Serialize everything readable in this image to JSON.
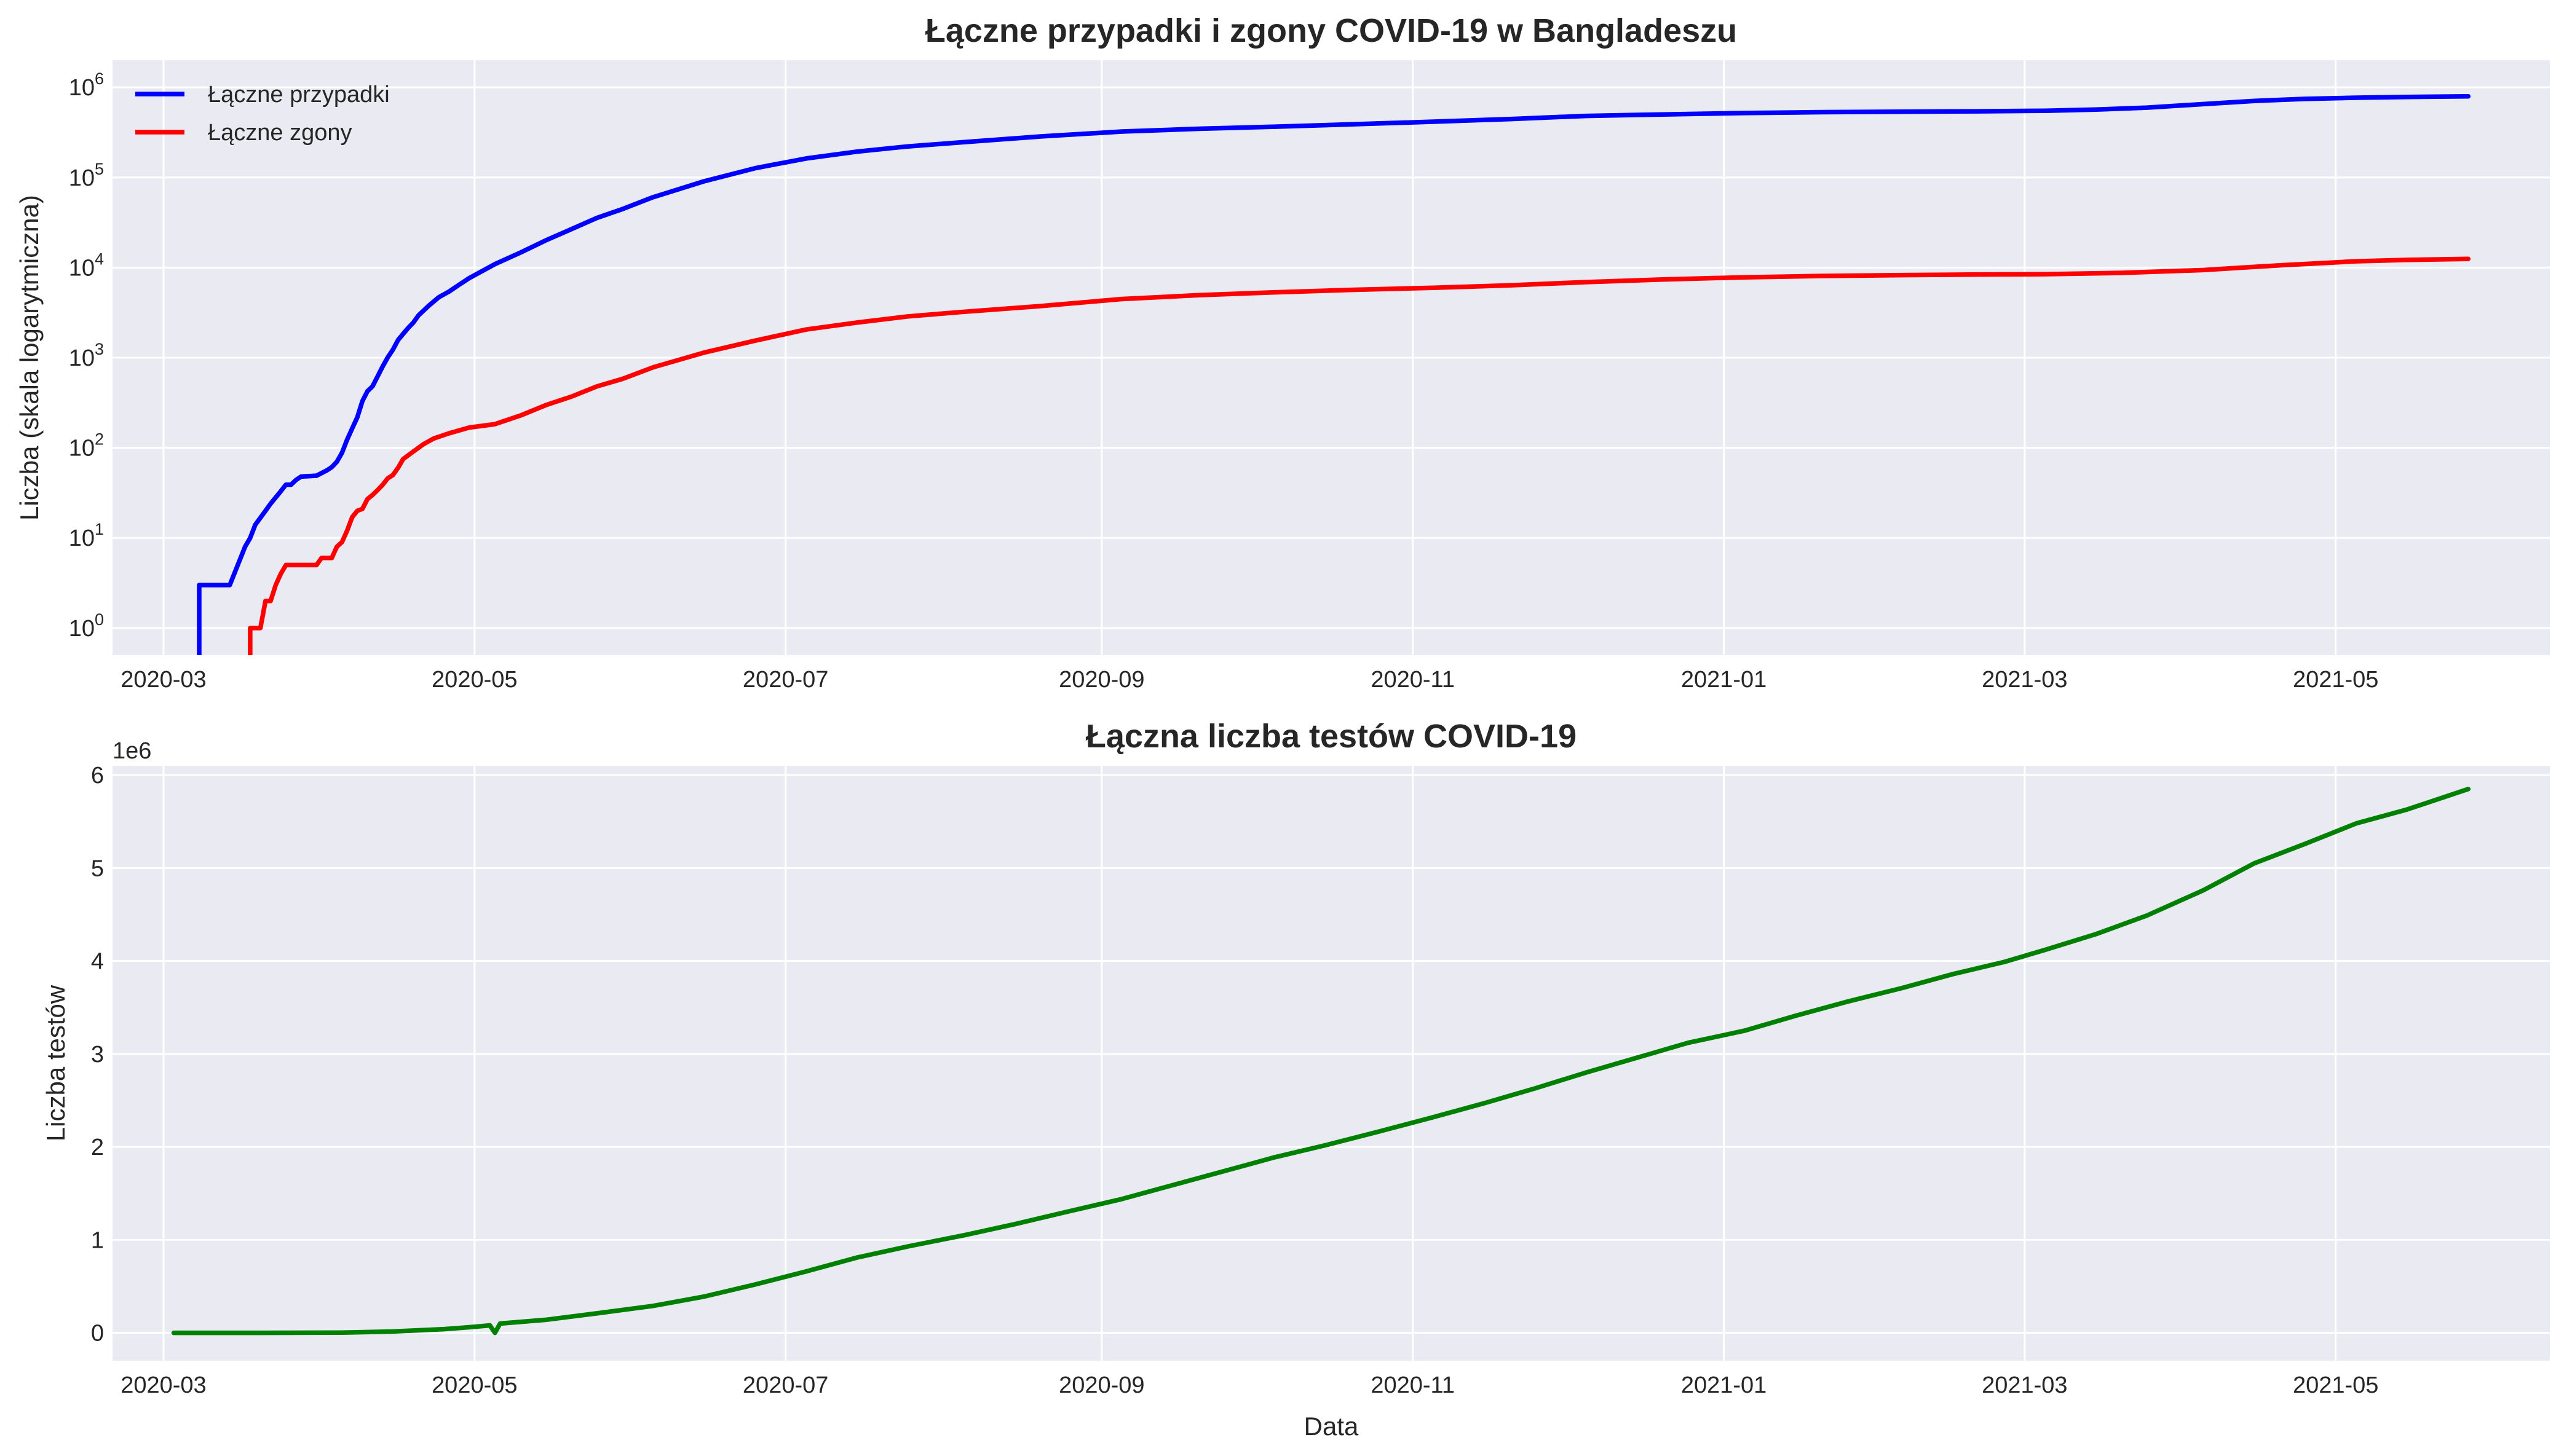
{
  "chart_data": [
    {
      "type": "line",
      "title": "Łączne przypadki i zgony COVID-19 w Bangladeszu",
      "xlabel": "",
      "ylabel": "Liczba (skala logarytmiczna)",
      "yscale": "log",
      "ylim": [
        0.5,
        2000000
      ],
      "xlim": [
        "2020-02-20",
        "2021-06-12"
      ],
      "grid": true,
      "legend": "top-left",
      "x_ticks": [
        "2020-03",
        "2020-05",
        "2020-07",
        "2020-09",
        "2020-11",
        "2021-01",
        "2021-03",
        "2021-05"
      ],
      "y_ticks": [
        {
          "value": 1,
          "base": "10",
          "exp": "0"
        },
        {
          "value": 10,
          "base": "10",
          "exp": "1"
        },
        {
          "value": 100,
          "base": "10",
          "exp": "2"
        },
        {
          "value": 1000,
          "base": "10",
          "exp": "3"
        },
        {
          "value": 10000,
          "base": "10",
          "exp": "4"
        },
        {
          "value": 100000,
          "base": "10",
          "exp": "5"
        },
        {
          "value": 1000000,
          "base": "10",
          "exp": "6"
        }
      ],
      "series": [
        {
          "name": "Łączne przypadki",
          "color": "#0000ff",
          "points": [
            [
              "2020-03-08",
              3
            ],
            [
              "2020-03-14",
              3
            ],
            [
              "2020-03-17",
              8
            ],
            [
              "2020-03-18",
              10
            ],
            [
              "2020-03-19",
              14
            ],
            [
              "2020-03-21",
              20
            ],
            [
              "2020-03-22",
              24
            ],
            [
              "2020-03-24",
              33
            ],
            [
              "2020-03-25",
              39
            ],
            [
              "2020-03-26",
              39
            ],
            [
              "2020-03-27",
              44
            ],
            [
              "2020-03-28",
              48
            ],
            [
              "2020-03-31",
              49
            ],
            [
              "2020-04-02",
              56
            ],
            [
              "2020-04-03",
              61
            ],
            [
              "2020-04-04",
              70
            ],
            [
              "2020-04-05",
              88
            ],
            [
              "2020-04-06",
              123
            ],
            [
              "2020-04-07",
              164
            ],
            [
              "2020-04-08",
              218
            ],
            [
              "2020-04-09",
              330
            ],
            [
              "2020-04-10",
              424
            ],
            [
              "2020-04-11",
              482
            ],
            [
              "2020-04-12",
              621
            ],
            [
              "2020-04-13",
              803
            ],
            [
              "2020-04-14",
              1012
            ],
            [
              "2020-04-15",
              1231
            ],
            [
              "2020-04-16",
              1572
            ],
            [
              "2020-04-17",
              1838
            ],
            [
              "2020-04-18",
              2144
            ],
            [
              "2020-04-19",
              2456
            ],
            [
              "2020-04-20",
              2948
            ],
            [
              "2020-04-22",
              3772
            ],
            [
              "2020-04-24",
              4689
            ],
            [
              "2020-04-26",
              5416
            ],
            [
              "2020-04-28",
              6462
            ],
            [
              "2020-04-30",
              7667
            ],
            [
              "2020-05-05",
              10929
            ],
            [
              "2020-05-10",
              14657
            ],
            [
              "2020-05-15",
              20065
            ],
            [
              "2020-05-20",
              26738
            ],
            [
              "2020-05-25",
              35585
            ],
            [
              "2020-05-30",
              44608
            ],
            [
              "2020-06-05",
              60391
            ],
            [
              "2020-06-15",
              90619
            ],
            [
              "2020-06-25",
              126606
            ],
            [
              "2020-07-05",
              162417
            ],
            [
              "2020-07-15",
              193590
            ],
            [
              "2020-07-25",
              221178
            ],
            [
              "2020-08-05",
              246674
            ],
            [
              "2020-08-20",
              285091
            ],
            [
              "2020-09-05",
              323565
            ],
            [
              "2020-09-20",
              347372
            ],
            [
              "2020-10-05",
              366383
            ],
            [
              "2020-10-20",
              388569
            ],
            [
              "2020-11-05",
              416006
            ],
            [
              "2020-11-20",
              445281
            ],
            [
              "2020-12-05",
              481945
            ],
            [
              "2020-12-20",
              500713
            ],
            [
              "2021-01-05",
              518894
            ],
            [
              "2021-01-20",
              530271
            ],
            [
              "2021-02-05",
              537451
            ],
            [
              "2021-02-20",
              542268
            ],
            [
              "2021-03-05",
              550330
            ],
            [
              "2021-03-15",
              566398
            ],
            [
              "2021-03-25",
              595714
            ],
            [
              "2021-04-05",
              651652
            ],
            [
              "2021-04-15",
              707362
            ],
            [
              "2021-04-25",
              745322
            ],
            [
              "2021-05-05",
              767338
            ],
            [
              "2021-05-15",
              781917
            ],
            [
              "2021-05-27",
              796000
            ]
          ]
        },
        {
          "name": "Łączne zgony",
          "color": "#ff0000",
          "points": [
            [
              "2020-03-18",
              1
            ],
            [
              "2020-03-20",
              1
            ],
            [
              "2020-03-21",
              2
            ],
            [
              "2020-03-22",
              2
            ],
            [
              "2020-03-23",
              3
            ],
            [
              "2020-03-24",
              4
            ],
            [
              "2020-03-25",
              5
            ],
            [
              "2020-03-31",
              5
            ],
            [
              "2020-04-01",
              6
            ],
            [
              "2020-04-03",
              6
            ],
            [
              "2020-04-04",
              8
            ],
            [
              "2020-04-05",
              9
            ],
            [
              "2020-04-06",
              12
            ],
            [
              "2020-04-07",
              17
            ],
            [
              "2020-04-08",
              20
            ],
            [
              "2020-04-09",
              21
            ],
            [
              "2020-04-10",
              27
            ],
            [
              "2020-04-11",
              30
            ],
            [
              "2020-04-12",
              34
            ],
            [
              "2020-04-13",
              39
            ],
            [
              "2020-04-14",
              46
            ],
            [
              "2020-04-15",
              50
            ],
            [
              "2020-04-16",
              60
            ],
            [
              "2020-04-17",
              75
            ],
            [
              "2020-04-19",
              91
            ],
            [
              "2020-04-21",
              110
            ],
            [
              "2020-04-23",
              127
            ],
            [
              "2020-04-26",
              145
            ],
            [
              "2020-04-30",
              168
            ],
            [
              "2020-05-05",
              183
            ],
            [
              "2020-05-10",
              228
            ],
            [
              "2020-05-15",
              298
            ],
            [
              "2020-05-20",
              370
            ],
            [
              "2020-05-25",
              480
            ],
            [
              "2020-05-30",
              582
            ],
            [
              "2020-06-05",
              781
            ],
            [
              "2020-06-15",
              1139
            ],
            [
              "2020-06-25",
              1545
            ],
            [
              "2020-07-05",
              2052
            ],
            [
              "2020-07-15",
              2457
            ],
            [
              "2020-07-25",
              2874
            ],
            [
              "2020-08-05",
              3234
            ],
            [
              "2020-08-20",
              3740
            ],
            [
              "2020-09-05",
              4479
            ],
            [
              "2020-09-20",
              4939
            ],
            [
              "2020-10-05",
              5318
            ],
            [
              "2020-10-20",
              5660
            ],
            [
              "2020-11-05",
              5966
            ],
            [
              "2020-11-20",
              6350
            ],
            [
              "2020-12-05",
              6906
            ],
            [
              "2020-12-20",
              7380
            ],
            [
              "2021-01-05",
              7803
            ],
            [
              "2021-01-20",
              8072
            ],
            [
              "2021-02-05",
              8248
            ],
            [
              "2021-02-20",
              8384
            ],
            [
              "2021-03-05",
              8451
            ],
            [
              "2021-03-20",
              8738
            ],
            [
              "2021-04-05",
              9384
            ],
            [
              "2021-04-20",
              10588
            ],
            [
              "2021-05-05",
              11755
            ],
            [
              "2021-05-15",
              12162
            ],
            [
              "2021-05-27",
              12500
            ]
          ]
        }
      ]
    },
    {
      "type": "line",
      "title": "Łączna liczba testów COVID-19",
      "xlabel": "Data",
      "ylabel": "Liczba testów",
      "y_offset_label": "1e6",
      "ylim": [
        -300000,
        6100000
      ],
      "xlim": [
        "2020-02-20",
        "2021-06-12"
      ],
      "grid": true,
      "x_ticks": [
        "2020-03",
        "2020-05",
        "2020-07",
        "2020-09",
        "2020-11",
        "2021-01",
        "2021-03",
        "2021-05"
      ],
      "y_ticks": [
        {
          "value": 0,
          "label": "0"
        },
        {
          "value": 1000000,
          "label": "1"
        },
        {
          "value": 2000000,
          "label": "2"
        },
        {
          "value": 3000000,
          "label": "3"
        },
        {
          "value": 4000000,
          "label": "4"
        },
        {
          "value": 5000000,
          "label": "5"
        },
        {
          "value": 6000000,
          "label": "6"
        }
      ],
      "series": [
        {
          "color": "#008000",
          "points": [
            [
              "2020-03-03",
              0
            ],
            [
              "2020-03-20",
              400
            ],
            [
              "2020-04-05",
              3000
            ],
            [
              "2020-04-15",
              15000
            ],
            [
              "2020-04-25",
              40000
            ],
            [
              "2020-05-01",
              65000
            ],
            [
              "2020-05-04",
              80000
            ],
            [
              "2020-05-05",
              0
            ],
            [
              "2020-05-06",
              100000
            ],
            [
              "2020-05-15",
              140000
            ],
            [
              "2020-05-25",
              210000
            ],
            [
              "2020-06-05",
              290000
            ],
            [
              "2020-06-15",
              390000
            ],
            [
              "2020-06-25",
              520000
            ],
            [
              "2020-07-05",
              660000
            ],
            [
              "2020-07-15",
              810000
            ],
            [
              "2020-07-25",
              930000
            ],
            [
              "2020-08-05",
              1050000
            ],
            [
              "2020-08-15",
              1170000
            ],
            [
              "2020-08-25",
              1300000
            ],
            [
              "2020-09-05",
              1440000
            ],
            [
              "2020-09-15",
              1590000
            ],
            [
              "2020-09-25",
              1740000
            ],
            [
              "2020-10-05",
              1890000
            ],
            [
              "2020-10-15",
              2020000
            ],
            [
              "2020-10-25",
              2160000
            ],
            [
              "2020-11-05",
              2320000
            ],
            [
              "2020-11-15",
              2470000
            ],
            [
              "2020-11-25",
              2630000
            ],
            [
              "2020-12-05",
              2800000
            ],
            [
              "2020-12-15",
              2960000
            ],
            [
              "2020-12-25",
              3120000
            ],
            [
              "2021-01-05",
              3250000
            ],
            [
              "2021-01-15",
              3410000
            ],
            [
              "2021-01-25",
              3560000
            ],
            [
              "2021-02-05",
              3710000
            ],
            [
              "2021-02-15",
              3860000
            ],
            [
              "2021-02-25",
              3990000
            ],
            [
              "2021-03-05",
              4120000
            ],
            [
              "2021-03-15",
              4290000
            ],
            [
              "2021-03-25",
              4490000
            ],
            [
              "2021-04-05",
              4760000
            ],
            [
              "2021-04-15",
              5050000
            ],
            [
              "2021-04-25",
              5260000
            ],
            [
              "2021-05-05",
              5480000
            ],
            [
              "2021-05-15",
              5630000
            ],
            [
              "2021-05-27",
              5850000
            ]
          ]
        }
      ]
    }
  ]
}
